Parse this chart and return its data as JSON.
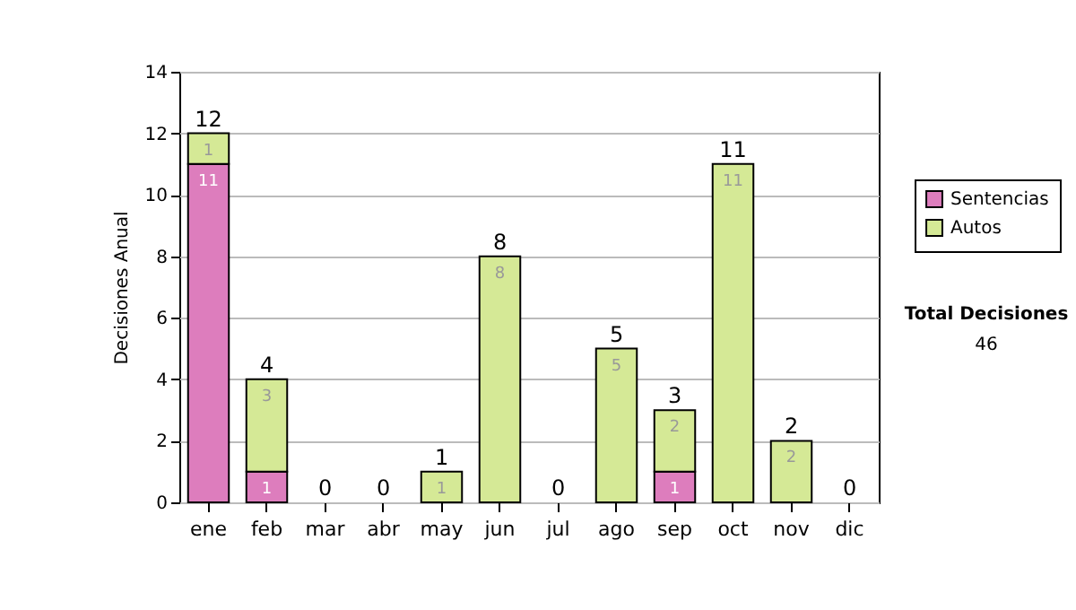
{
  "chart_data": {
    "type": "bar",
    "stacked": true,
    "ylabel": "Decisiones Anual",
    "categories": [
      "ene",
      "feb",
      "mar",
      "abr",
      "may",
      "jun",
      "jul",
      "ago",
      "sep",
      "oct",
      "nov",
      "dic"
    ],
    "series": [
      {
        "name": "Sentencias",
        "color": "#dd7dbd",
        "values": [
          11,
          1,
          0,
          0,
          0,
          0,
          0,
          0,
          1,
          0,
          0,
          0
        ],
        "value_labels": [
          "11",
          "1",
          null,
          null,
          null,
          null,
          null,
          null,
          "1",
          null,
          null,
          null
        ]
      },
      {
        "name": "Autos",
        "color": "#d5e996",
        "values": [
          1,
          3,
          0,
          0,
          1,
          8,
          0,
          5,
          2,
          11,
          2,
          0
        ],
        "value_labels": [
          "1",
          "3",
          null,
          null,
          "1",
          "8",
          null,
          "5",
          "2",
          "11",
          "2",
          null
        ]
      }
    ],
    "totals": [
      "12",
      "4",
      "0",
      "0",
      "1",
      "8",
      "0",
      "5",
      "3",
      "11",
      "2",
      "0"
    ],
    "ylim": [
      0,
      14
    ],
    "yticks": [
      0,
      2,
      4,
      6,
      8,
      10,
      12,
      14
    ],
    "grid": "y",
    "legend": "right",
    "annotations": [
      "Total Decisiones",
      "46"
    ]
  }
}
